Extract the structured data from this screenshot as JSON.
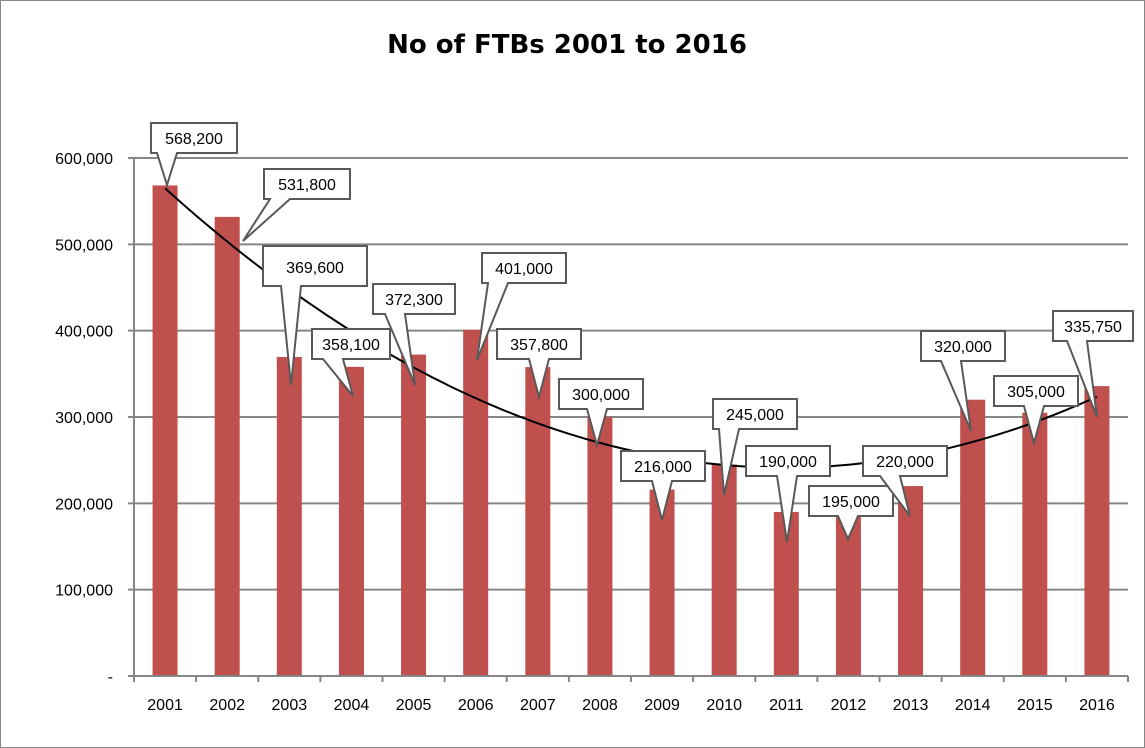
{
  "chart_data": {
    "type": "bar",
    "title": "No of FTBs 2001 to 2016",
    "xlabel": "",
    "ylabel": "",
    "categories": [
      "2001",
      "2002",
      "2003",
      "2004",
      "2005",
      "2006",
      "2007",
      "2008",
      "2009",
      "2010",
      "2011",
      "2012",
      "2013",
      "2014",
      "2015",
      "2016"
    ],
    "values": [
      568200,
      531800,
      369600,
      358100,
      372300,
      401000,
      357800,
      300000,
      216000,
      245000,
      190000,
      195000,
      220000,
      320000,
      305000,
      335750
    ],
    "data_labels": [
      "568,200",
      "531,800",
      "369,600",
      "358,100",
      "372,300",
      "401,000",
      "357,800",
      "300,000",
      "216,000",
      "245,000",
      "190,000",
      "195,000",
      "220,000",
      "320,000",
      "305,000",
      "335,750"
    ],
    "ylim": [
      0,
      600000
    ],
    "y_ticks": [
      0,
      100000,
      200000,
      300000,
      400000,
      500000,
      600000
    ],
    "y_tick_labels": [
      "-",
      "100,000",
      "200,000",
      "300,000",
      "400,000",
      "500,000",
      "600,000"
    ],
    "grid": true,
    "legend": "none",
    "bar_color": "#c0504d",
    "trendline": {
      "type": "polynomial-2",
      "color": "#000000"
    }
  }
}
